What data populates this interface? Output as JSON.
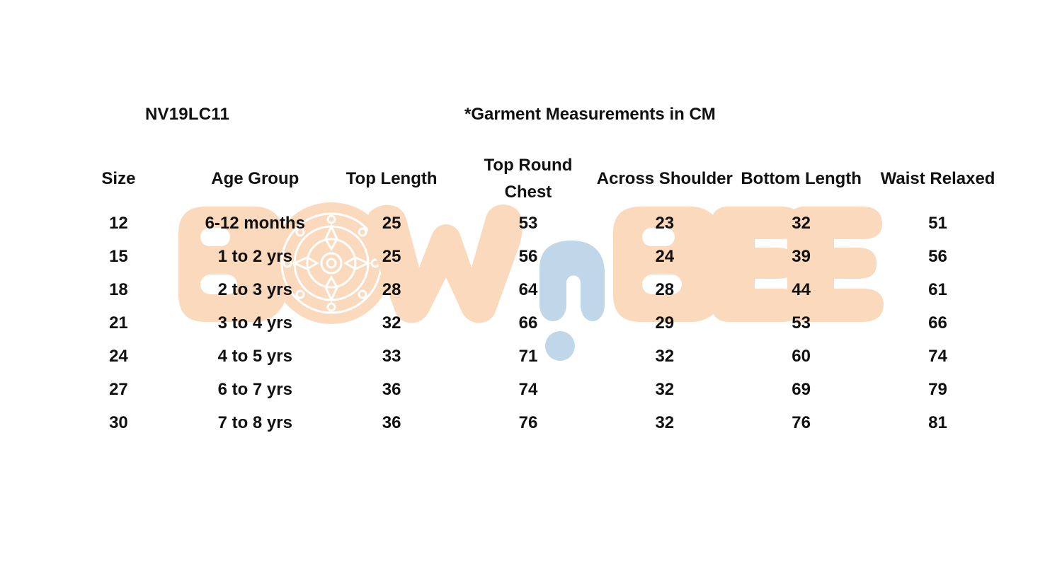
{
  "document": {
    "style_code": "NV19LC11",
    "note": "*Garment Measurements in CM"
  },
  "watermark": {
    "text": "BOWnBEE",
    "colors": {
      "peach": "#fad9bc",
      "blue": "#c0d7e9",
      "pattern": "#ffffff"
    }
  },
  "table": {
    "headers": [
      "Size",
      "Age Group",
      "Top Length",
      "Top Round Chest",
      "Across Shoulder",
      "Bottom Length",
      "Waist Relaxed"
    ],
    "rows": [
      [
        "12",
        "6-12 months",
        "25",
        "53",
        "23",
        "32",
        "51"
      ],
      [
        "15",
        "1 to 2 yrs",
        "25",
        "56",
        "24",
        "39",
        "56"
      ],
      [
        "18",
        "2 to 3 yrs",
        "28",
        "64",
        "28",
        "44",
        "61"
      ],
      [
        "21",
        "3 to 4 yrs",
        "32",
        "66",
        "29",
        "53",
        "66"
      ],
      [
        "24",
        "4 to 5 yrs",
        "33",
        "71",
        "32",
        "60",
        "74"
      ],
      [
        "27",
        "6 to 7 yrs",
        "36",
        "74",
        "32",
        "69",
        "79"
      ],
      [
        "30",
        "7 to 8 yrs",
        "36",
        "76",
        "32",
        "76",
        "81"
      ]
    ]
  }
}
